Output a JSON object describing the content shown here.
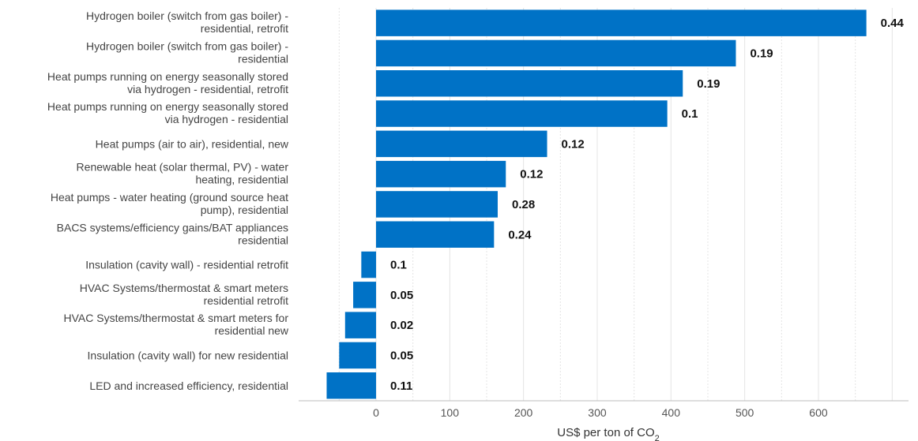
{
  "chart_data": {
    "type": "bar",
    "orientation": "horizontal",
    "bar_color": "#0072C6",
    "categories": [
      [
        "Hydrogen boiler (switch from gas boiler) -",
        "residential, retrofit"
      ],
      [
        "Hydrogen boiler (switch from gas boiler) -",
        "residential"
      ],
      [
        "Heat pumps running on energy seasonally stored",
        "via hydrogen - residential, retrofit"
      ],
      [
        "Heat pumps running on energy seasonally stored",
        "via hydrogen - residential"
      ],
      [
        "Heat pumps (air to air), residential, new"
      ],
      [
        "Renewable heat (solar thermal, PV) - water",
        "heating, residential"
      ],
      [
        "Heat pumps - water heating (ground source heat",
        "pump), residential"
      ],
      [
        "BACS systems/efficiency gains/BAT appliances",
        "residential"
      ],
      [
        "Insulation (cavity wall) - residential retrofit"
      ],
      [
        "HVAC Systems/thermostat & smart meters",
        "residential retrofit"
      ],
      [
        "HVAC Systems/thermostat & smart meters for",
        "residential new"
      ],
      [
        "Insulation (cavity wall) for new residential"
      ],
      [
        "LED and increased efficiency, residential"
      ]
    ],
    "values": [
      665,
      488,
      416,
      395,
      232,
      176,
      165,
      160,
      -20,
      -31,
      -42,
      -50,
      -67
    ],
    "data_labels": [
      "0.44",
      "0.19",
      "0.19",
      "0.1",
      "0.12",
      "0.12",
      "0.28",
      "0.24",
      "0.1",
      "0.05",
      "0.02",
      "0.05",
      "0.11"
    ],
    "xlabel": "US$ per ton of CO",
    "xlabel_subscript": "2",
    "xticks": [
      0,
      100,
      200,
      300,
      400,
      500,
      600
    ],
    "xlim": [
      -100,
      730
    ],
    "grid": "vertical"
  }
}
